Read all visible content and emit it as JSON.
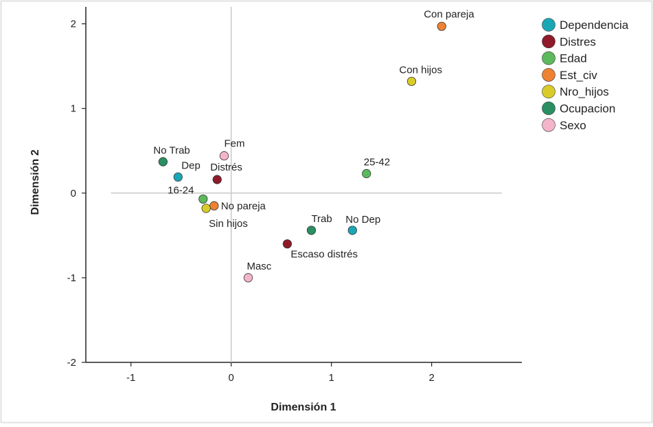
{
  "chart_data": {
    "type": "scatter",
    "xlabel": "Dimensión 1",
    "ylabel": "Dimensión 2",
    "xlim": [
      -1.45,
      2.9
    ],
    "ylim": [
      -2,
      2.2
    ],
    "x_ticks": [
      -1,
      0,
      1,
      2
    ],
    "y_ticks": [
      -2,
      -1,
      0,
      1,
      2
    ],
    "reference_lines": {
      "x": 0,
      "y": 0
    },
    "legend_position": "right",
    "grid": false,
    "series": [
      {
        "name": "Dependencia",
        "color": "#1aa7b5",
        "points": [
          {
            "x": -0.53,
            "y": 0.19,
            "label": "Dep"
          },
          {
            "x": 1.21,
            "y": -0.44,
            "label": "No Dep"
          }
        ]
      },
      {
        "name": "Distres",
        "color": "#8e1a2a",
        "points": [
          {
            "x": -0.14,
            "y": 0.16,
            "label": "Distrés"
          },
          {
            "x": 0.56,
            "y": -0.6,
            "label": "Escaso distrés"
          }
        ]
      },
      {
        "name": "Edad",
        "color": "#5cba5c",
        "points": [
          {
            "x": -0.28,
            "y": -0.07,
            "label": "16-24"
          },
          {
            "x": 1.35,
            "y": 0.23,
            "label": "25-42"
          }
        ]
      },
      {
        "name": "Est_civ",
        "color": "#ed8233",
        "points": [
          {
            "x": 2.1,
            "y": 1.97,
            "label": "Con pareja"
          },
          {
            "x": -0.17,
            "y": -0.15,
            "label": "No pareja"
          }
        ]
      },
      {
        "name": "Nro_hijos",
        "color": "#d9cc2a",
        "points": [
          {
            "x": 1.8,
            "y": 1.32,
            "label": "Con hijos"
          },
          {
            "x": -0.25,
            "y": -0.18,
            "label": "Sin hijos"
          }
        ]
      },
      {
        "name": "Ocupacion",
        "color": "#2a8f63",
        "points": [
          {
            "x": -0.68,
            "y": 0.37,
            "label": "No Trab"
          },
          {
            "x": 0.8,
            "y": -0.44,
            "label": "Trab"
          }
        ]
      },
      {
        "name": "Sexo",
        "color": "#f4b5cb",
        "points": [
          {
            "x": -0.07,
            "y": 0.44,
            "label": "Fem"
          },
          {
            "x": 0.17,
            "y": -1.0,
            "label": "Masc"
          }
        ]
      }
    ]
  }
}
